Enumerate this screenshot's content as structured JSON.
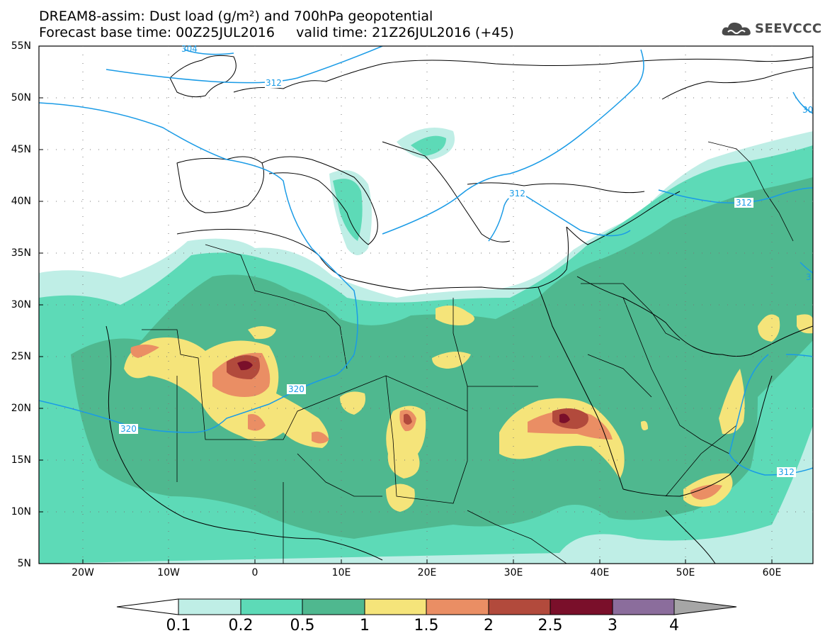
{
  "title": {
    "line1": "DREAM8-assim: Dust load (g/m²) and 700hPa geopotential",
    "line2": "Forecast base time: 00Z25JUL2016     valid time: 21Z26JUL2016 (+45)"
  },
  "logo": {
    "text": "SEEVCCC",
    "icon": "cloud-icon"
  },
  "map": {
    "lon_range": [
      -25,
      65
    ],
    "lat_range": [
      5,
      55
    ],
    "lat_ticks": [
      "55N",
      "50N",
      "45N",
      "40N",
      "35N",
      "30N",
      "25N",
      "20N",
      "15N",
      "10N",
      "5N"
    ],
    "lon_ticks": [
      "20W",
      "10W",
      "0",
      "10E",
      "20E",
      "30E",
      "40E",
      "50E",
      "60E"
    ],
    "contour_labels": [
      "304",
      "312",
      "312",
      "312",
      "312",
      "320",
      "320",
      "30",
      "3"
    ],
    "colors": {
      "level_0_1": "#bfeee6",
      "level_0_2": "#5ddab7",
      "level_0_5": "#4fb88f",
      "level_1": "#f5e47a",
      "level_1_5": "#ea8e64",
      "level_2": "#b24a3c",
      "level_2_5": "#7a0f2a",
      "level_3": "#8b6d9c",
      "level_4": "#a6a6a6",
      "geopotential": "#1a9be6",
      "coast": "#000000"
    }
  },
  "colorbar": {
    "labels": [
      "0.1",
      "0.2",
      "0.5",
      "1",
      "1.5",
      "2",
      "2.5",
      "3",
      "4"
    ],
    "colors": [
      "#ffffff",
      "#bfeee6",
      "#5ddab7",
      "#4fb88f",
      "#f5e47a",
      "#ea8e64",
      "#b24a3c",
      "#7a0f2a",
      "#8b6d9c",
      "#a6a6a6"
    ]
  }
}
